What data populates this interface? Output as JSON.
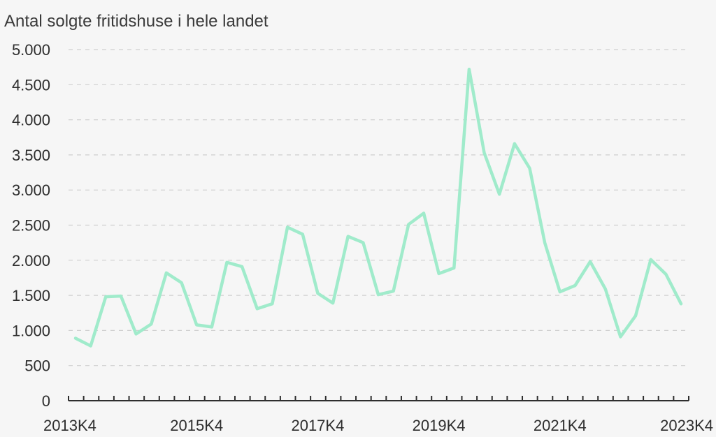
{
  "chart_data": {
    "type": "line",
    "title": "Antal solgte fritidshuse i hele landet",
    "xlabel": "",
    "ylabel": "",
    "ylim": [
      0,
      5000
    ],
    "yticks": [
      0,
      500,
      1000,
      1500,
      2000,
      2500,
      3000,
      3500,
      4000,
      4500,
      5000
    ],
    "ytick_labels": [
      "0",
      "500",
      "1.000",
      "1.500",
      "2.000",
      "2.500",
      "3.000",
      "3.500",
      "4.000",
      "4.500",
      "5.000"
    ],
    "x": [
      "2013K4",
      "2014K1",
      "2014K2",
      "2014K3",
      "2014K4",
      "2015K1",
      "2015K2",
      "2015K3",
      "2015K4",
      "2016K1",
      "2016K2",
      "2016K3",
      "2016K4",
      "2017K1",
      "2017K2",
      "2017K3",
      "2017K4",
      "2018K1",
      "2018K2",
      "2018K3",
      "2018K4",
      "2019K1",
      "2019K2",
      "2019K3",
      "2019K4",
      "2020K1",
      "2020K2",
      "2020K3",
      "2020K4",
      "2021K1",
      "2021K2",
      "2021K3",
      "2021K4",
      "2022K1",
      "2022K2",
      "2022K3",
      "2022K4",
      "2023K1",
      "2023K2",
      "2023K3",
      "2023K4"
    ],
    "x_labels_shown": [
      "2013K4",
      "2015K4",
      "2017K4",
      "2019K4",
      "2021K4",
      "2023K4"
    ],
    "series": [
      {
        "color": "#a0ebcb",
        "values": [
          890,
          780,
          1480,
          1490,
          950,
          1090,
          1820,
          1680,
          1080,
          1050,
          1970,
          1910,
          1310,
          1380,
          2470,
          2370,
          1530,
          1390,
          2340,
          2250,
          1510,
          1560,
          2510,
          2670,
          1810,
          1890,
          4720,
          3530,
          2940,
          3660,
          3310,
          2250,
          1550,
          1640,
          1980,
          1590,
          910,
          1210,
          2010,
          1800,
          1380
        ]
      }
    ],
    "grid": true,
    "legend": "none"
  }
}
